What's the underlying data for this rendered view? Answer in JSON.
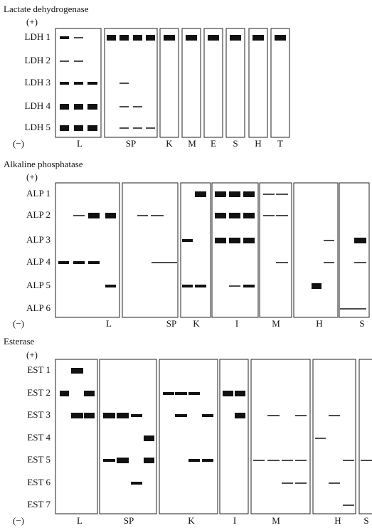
{
  "panels": [
    {
      "title": "Lactate dehydrogenase",
      "anode": "(+)",
      "cathode": "(−)",
      "rows": [
        "LDH 1",
        "LDH 2",
        "LDH 3",
        "LDH 4",
        "LDH 5"
      ],
      "columns": [
        "L",
        "SP",
        "K",
        "M",
        "E",
        "S",
        "H",
        "T"
      ]
    },
    {
      "title": "Alkaline phosphatase",
      "anode": "(+)",
      "cathode": "(−)",
      "rows": [
        "ALP 1",
        "ALP 2",
        "ALP 3",
        "ALP 4",
        "ALP 5",
        "ALP 6"
      ],
      "columns": [
        "L",
        "SP",
        "K",
        "I",
        "M",
        "H",
        "S"
      ]
    },
    {
      "title": "Esterase",
      "anode": "(+)",
      "cathode": "(−)",
      "rows": [
        "EST 1",
        "EST 2",
        "EST 3",
        "EST 4",
        "EST 5",
        "EST 6",
        "EST 7"
      ],
      "columns": [
        "L",
        "SP",
        "K",
        "I",
        "M",
        "H",
        "S"
      ]
    }
  ]
}
